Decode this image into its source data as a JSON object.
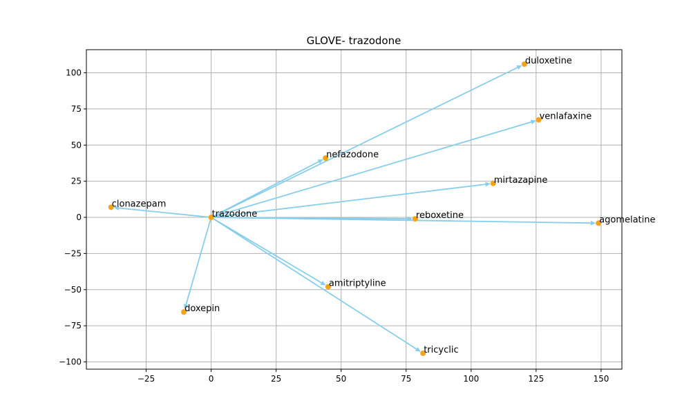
{
  "chart_data": {
    "type": "scatter",
    "title": "GLOVE- trazodone",
    "xlabel": "",
    "ylabel": "",
    "xlim": [
      -48,
      158
    ],
    "ylim": [
      -105,
      116
    ],
    "xticks": [
      -25,
      0,
      25,
      50,
      75,
      100,
      125,
      150
    ],
    "yticks": [
      -100,
      -75,
      -50,
      -25,
      0,
      25,
      50,
      75,
      100
    ],
    "grid": true,
    "point_color": "#f5a31a",
    "arrow_color": "#87ceeb",
    "origin": {
      "label": "trazodone",
      "x": 0,
      "y": 0
    },
    "points": [
      {
        "label": "trazodone",
        "x": 0,
        "y": 0
      },
      {
        "label": "duloxetine",
        "x": 120.5,
        "y": 106
      },
      {
        "label": "venlafaxine",
        "x": 126,
        "y": 67.5
      },
      {
        "label": "nefazodone",
        "x": 44,
        "y": 41
      },
      {
        "label": "mirtazapine",
        "x": 108.5,
        "y": 23.5
      },
      {
        "label": "clonazepam",
        "x": -38.5,
        "y": 7
      },
      {
        "label": "reboxetine",
        "x": 78.5,
        "y": -1
      },
      {
        "label": "agomelatine",
        "x": 149,
        "y": -4
      },
      {
        "label": "amitriptyline",
        "x": 45,
        "y": -48
      },
      {
        "label": "doxepin",
        "x": -10.5,
        "y": -65.5
      },
      {
        "label": "tricyclic",
        "x": 81.5,
        "y": -94
      }
    ]
  }
}
